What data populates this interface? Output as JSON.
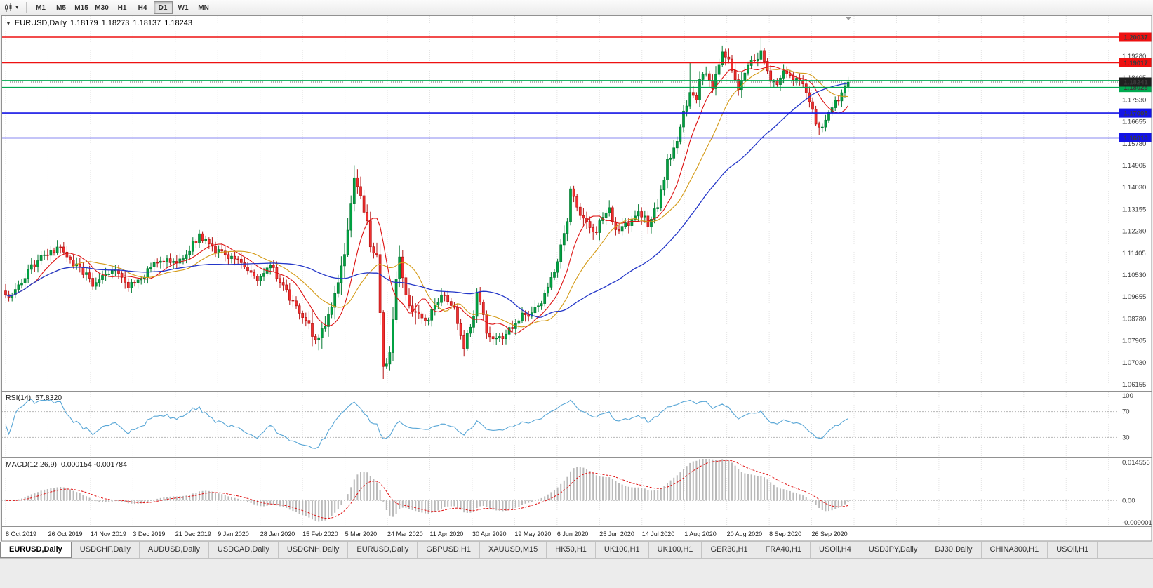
{
  "toolbar": {
    "icons": [
      "candlestick-chart-icon",
      "chevron-down-icon"
    ],
    "timeframes": [
      "M1",
      "M5",
      "M15",
      "M30",
      "H1",
      "H4",
      "D1",
      "W1",
      "MN"
    ],
    "active_timeframe": "D1"
  },
  "chart": {
    "symbol": "EURUSD,Daily",
    "ohlc": {
      "open": "1.18179",
      "high": "1.18273",
      "low": "1.18137",
      "close": "1.18243"
    },
    "price_axis_ticks": [
      "1.19280",
      "1.18405",
      "1.17530",
      "1.16655",
      "1.15780",
      "1.14905",
      "1.14030",
      "1.13155",
      "1.12280",
      "1.11405",
      "1.10530",
      "1.09655",
      "1.08780",
      "1.07905",
      "1.07030",
      "1.06155"
    ],
    "levels": [
      {
        "label": "1.20037",
        "value": 1.20037,
        "color": "#ee1111",
        "tag": true
      },
      {
        "label": "1.19017",
        "value": 1.19017,
        "color": "#ee1111",
        "tag": true
      },
      {
        "label": "1.18300",
        "value": 1.183,
        "color": "#00a94f",
        "tag": false
      },
      {
        "label": "1.18025",
        "value": 1.18025,
        "color": "#00a94f",
        "tag": true
      },
      {
        "label": "1.17005",
        "value": 1.17005,
        "color": "#1414e6",
        "tag": true
      },
      {
        "label": "1.16013",
        "value": 1.16013,
        "color": "#1414e6",
        "tag": true
      }
    ],
    "current_price": {
      "label": "1.18241",
      "value": 1.18241,
      "tag_color": "#1f1f1f"
    },
    "date_axis": [
      "8 Oct 2019",
      "26 Oct 2019",
      "14 Nov 2019",
      "3 Dec 2019",
      "21 Dec 2019",
      "9 Jan 2020",
      "28 Jan 2020",
      "15 Feb 2020",
      "5 Mar 2020",
      "24 Mar 2020",
      "11 Apr 2020",
      "30 Apr 2020",
      "19 May 2020",
      "6 Jun 2020",
      "25 Jun 2020",
      "14 Jul 2020",
      "1 Aug 2020",
      "20 Aug 2020",
      "8 Sep 2020",
      "26 Sep 2020"
    ]
  },
  "rsi": {
    "title": "RSI(14)",
    "value": "57.8320",
    "scale": [
      "100",
      "70",
      "30"
    ],
    "levels": [
      70,
      30
    ]
  },
  "macd": {
    "title": "MACD(12,26,9)",
    "values": "0.000154 -0.001784",
    "scale": [
      "0.014556",
      "0.00",
      "-0.009001"
    ]
  },
  "tabs": [
    "EURUSD,Daily",
    "USDCHF,Daily",
    "AUDUSD,Daily",
    "USDCAD,Daily",
    "USDCNH,Daily",
    "EURUSD,Daily",
    "GBPUSD,H1",
    "XAUUSD,M15",
    "HK50,H1",
    "UK100,H1",
    "UK100,H1",
    "GER30,H1",
    "FRA40,H1",
    "USOil,H4",
    "USDJPY,Daily",
    "DJ30,Daily",
    "CHINA300,H1",
    "USOil,H1"
  ],
  "active_tab_index": 0,
  "chart_data": {
    "type": "candlestick",
    "title": "EURUSD,Daily",
    "x_range": [
      "8 Oct 2019",
      "7 Oct 2020"
    ],
    "y_range": [
      1.0593,
      1.2091
    ],
    "bars": 262,
    "note": "approximate visible price path; anchors are [bar_index, close]",
    "price_anchors": [
      [
        0,
        1.0965
      ],
      [
        3,
        1.099
      ],
      [
        7,
        1.107
      ],
      [
        10,
        1.111
      ],
      [
        14,
        1.114
      ],
      [
        17,
        1.1158
      ],
      [
        20,
        1.111
      ],
      [
        24,
        1.1068
      ],
      [
        27,
        1.1012
      ],
      [
        31,
        1.1062
      ],
      [
        34,
        1.1078
      ],
      [
        38,
        1.1008
      ],
      [
        42,
        1.1042
      ],
      [
        46,
        1.1092
      ],
      [
        50,
        1.1118
      ],
      [
        54,
        1.1108
      ],
      [
        60,
        1.1212
      ],
      [
        64,
        1.1162
      ],
      [
        69,
        1.1122
      ],
      [
        74,
        1.1092
      ],
      [
        78,
        1.1032
      ],
      [
        82,
        1.1092
      ],
      [
        86,
        1.1002
      ],
      [
        90,
        1.0922
      ],
      [
        94,
        1.0842
      ],
      [
        96,
        1.0792
      ],
      [
        100,
        1.0902
      ],
      [
        103,
        1.1032
      ],
      [
        105,
        1.1132
      ],
      [
        108,
        1.1452
      ],
      [
        110,
        1.1362
      ],
      [
        113,
        1.1182
      ],
      [
        115,
        1.1112
      ],
      [
        117,
        1.0682
      ],
      [
        119,
        1.0732
      ],
      [
        121,
        1.1032
      ],
      [
        122,
        1.1102
      ],
      [
        124,
        1.0982
      ],
      [
        127,
        1.0882
      ],
      [
        130,
        1.0862
      ],
      [
        133,
        1.0922
      ],
      [
        136,
        1.0982
      ],
      [
        139,
        1.0912
      ],
      [
        142,
        1.0772
      ],
      [
        145,
        1.0882
      ],
      [
        146,
        1.0982
      ],
      [
        149,
        1.0832
      ],
      [
        151,
        1.0792
      ],
      [
        154,
        1.0812
      ],
      [
        157,
        1.0852
      ],
      [
        160,
        1.0892
      ],
      [
        163,
        1.0902
      ],
      [
        166,
        1.0942
      ],
      [
        168,
        1.1002
      ],
      [
        171,
        1.1112
      ],
      [
        174,
        1.1282
      ],
      [
        175,
        1.1382
      ],
      [
        178,
        1.1302
      ],
      [
        180,
        1.1252
      ],
      [
        182,
        1.1222
      ],
      [
        185,
        1.1272
      ],
      [
        187,
        1.1312
      ],
      [
        189,
        1.1222
      ],
      [
        192,
        1.1252
      ],
      [
        195,
        1.1282
      ],
      [
        197,
        1.1302
      ],
      [
        199,
        1.1262
      ],
      [
        202,
        1.1332
      ],
      [
        205,
        1.1502
      ],
      [
        208,
        1.1582
      ],
      [
        210,
        1.1702
      ],
      [
        212,
        1.1782
      ],
      [
        214,
        1.1762
      ],
      [
        216,
        1.1872
      ],
      [
        219,
        1.1792
      ],
      [
        222,
        1.1932
      ],
      [
        224,
        1.1922
      ],
      [
        227,
        1.1802
      ],
      [
        229,
        1.1872
      ],
      [
        231,
        1.1902
      ],
      [
        234,
        1.1942
      ],
      [
        237,
        1.1822
      ],
      [
        239,
        1.1812
      ],
      [
        241,
        1.1862
      ],
      [
        244,
        1.1846
      ],
      [
        246,
        1.1842
      ],
      [
        248,
        1.1792
      ],
      [
        250,
        1.1702
      ],
      [
        252,
        1.1632
      ],
      [
        254,
        1.1662
      ],
      [
        256,
        1.1722
      ],
      [
        258,
        1.1762
      ],
      [
        261,
        1.18243
      ]
    ],
    "key_extremes": {
      "high": [
        234,
        1.20037
      ],
      "low": [
        117,
        1.0636
      ]
    },
    "overlays": [
      {
        "name": "ma-fast",
        "type": "sma",
        "period": 10,
        "color": "#dd1111"
      },
      {
        "name": "ma-mid",
        "type": "sma",
        "period": 21,
        "color": "#d49a16"
      },
      {
        "name": "ma-slow",
        "type": "sma",
        "period": 50,
        "color": "#2336c8"
      }
    ],
    "horizontal_levels": [
      1.20037,
      1.19017,
      1.183,
      1.18025,
      1.17005,
      1.16013
    ],
    "rsi": {
      "period": 14,
      "current": 57.832,
      "levels": [
        70,
        30
      ],
      "range": [
        0,
        100
      ]
    },
    "macd": {
      "fast": 12,
      "slow": 26,
      "signal": 9,
      "current": [
        0.000154,
        -0.001784
      ],
      "y_range": [
        -0.009001,
        0.014556
      ]
    }
  }
}
